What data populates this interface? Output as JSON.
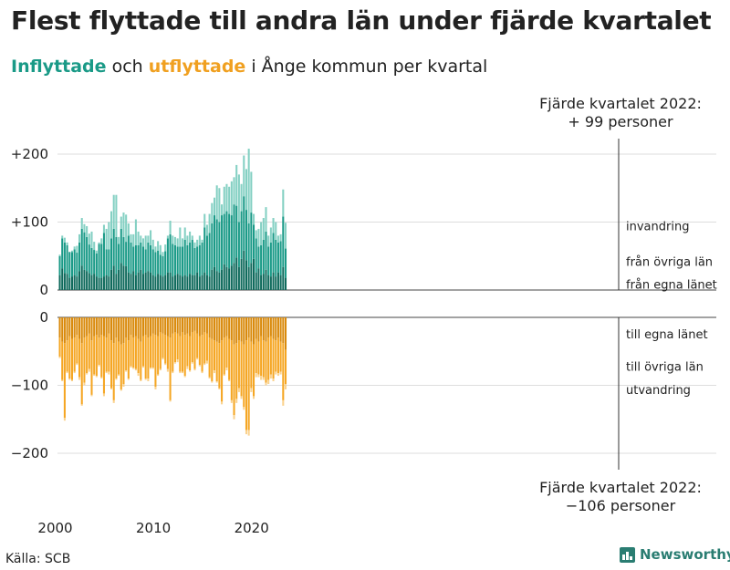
{
  "title": "Flest flyttade till andra län under fjärde kvartalet",
  "subtitle": {
    "part1": "Inflyttade",
    "part2": " och ",
    "part3": "utflyttade",
    "part4": " i Ånge kommun per kvartal"
  },
  "annotation_top": {
    "line1": "Fjärde kvartalet 2022:",
    "line2": "+ 99 personer"
  },
  "annotation_bottom": {
    "line1": "Fjärde kvartalet 2022:",
    "line2": "−106 personer"
  },
  "source": "Källa: SCB",
  "logo": "Newsworthy",
  "colors": {
    "in_egna": "#0f6a5c",
    "in_ovriga": "#1a9a87",
    "in_invandring": "#84d0c3",
    "out_egna": "#d98a0c",
    "out_ovriga": "#f5a623",
    "out_utvandring": "#fad28e",
    "grid": "#dddddd"
  },
  "chart_data": {
    "type": "bar",
    "stacked": true,
    "x_start": "2000 Q1",
    "x_end": "2022 Q4",
    "x_ticks": [
      {
        "year": 2000,
        "label": "2000"
      },
      {
        "year": 2010,
        "label": "2010"
      },
      {
        "year": 2020,
        "label": "2020"
      }
    ],
    "top_panel": {
      "ylim": [
        0,
        230
      ],
      "yticks": [
        {
          "value": 0,
          "label": "0"
        },
        {
          "value": 100,
          "label": "+100"
        },
        {
          "value": 200,
          "label": "+200"
        }
      ],
      "series": [
        {
          "name": "från egna länet",
          "label": "från egna länet",
          "color": "in_egna",
          "values": [
            22,
            32,
            25,
            24,
            18,
            20,
            22,
            20,
            28,
            36,
            30,
            28,
            25,
            22,
            24,
            20,
            18,
            18,
            20,
            22,
            20,
            30,
            36,
            24,
            30,
            40,
            36,
            35,
            26,
            24,
            28,
            22,
            26,
            30,
            24,
            26,
            28,
            26,
            22,
            20,
            24,
            22,
            20,
            22,
            26,
            26,
            20,
            22,
            24,
            22,
            20,
            22,
            20,
            24,
            22,
            22,
            26,
            20,
            22,
            26,
            22,
            20,
            30,
            34,
            28,
            26,
            30,
            38,
            34,
            32,
            36,
            40,
            48,
            34,
            46,
            58,
            44,
            34,
            40,
            46,
            26,
            32,
            22,
            24,
            30,
            22,
            20,
            26,
            20,
            26,
            22,
            34,
            18
          ]
        },
        {
          "name": "från övriga län",
          "label": "från övriga län",
          "color": "in_ovriga",
          "values": [
            28,
            44,
            45,
            42,
            38,
            36,
            38,
            35,
            42,
            54,
            55,
            50,
            42,
            40,
            35,
            34,
            50,
            50,
            64,
            38,
            40,
            46,
            54,
            54,
            38,
            50,
            42,
            36,
            54,
            46,
            36,
            44,
            40,
            40,
            40,
            34,
            42,
            40,
            38,
            36,
            34,
            30,
            30,
            35,
            50,
            56,
            48,
            44,
            40,
            42,
            44,
            52,
            46,
            46,
            52,
            40,
            38,
            46,
            48,
            66,
            58,
            64,
            68,
            76,
            76,
            74,
            80,
            74,
            82,
            80,
            74,
            86,
            76,
            66,
            70,
            80,
            74,
            64,
            74,
            50,
            50,
            32,
            44,
            50,
            56,
            42,
            50,
            58,
            54,
            44,
            50,
            74,
            43
          ]
        },
        {
          "name": "invandring",
          "label": "invandring",
          "color": "in_invandring",
          "values": [
            2,
            4,
            7,
            4,
            0,
            2,
            4,
            10,
            12,
            16,
            12,
            16,
            16,
            24,
            12,
            4,
            2,
            8,
            12,
            30,
            40,
            40,
            50,
            62,
            10,
            18,
            36,
            40,
            18,
            12,
            18,
            38,
            20,
            10,
            12,
            20,
            10,
            22,
            14,
            8,
            14,
            14,
            6,
            10,
            4,
            20,
            12,
            12,
            12,
            28,
            12,
            18,
            14,
            16,
            6,
            8,
            10,
            14,
            4,
            20,
            16,
            28,
            30,
            26,
            50,
            50,
            16,
            40,
            40,
            40,
            50,
            40,
            60,
            70,
            40,
            60,
            60,
            110,
            60,
            16,
            12,
            26,
            34,
            32,
            36,
            16,
            22,
            22,
            26,
            10,
            10,
            40,
            38
          ]
        }
      ]
    },
    "bottom_panel": {
      "ylim": [
        -230,
        0
      ],
      "yticks": [
        {
          "value": 0,
          "label": "0"
        },
        {
          "value": -100,
          "label": "−100"
        },
        {
          "value": -200,
          "label": "−200"
        }
      ],
      "series": [
        {
          "name": "till egna länet",
          "label": "till egna länet",
          "color": "out_egna",
          "values": [
            -30,
            -36,
            -38,
            -34,
            -28,
            -32,
            -30,
            -26,
            -32,
            -38,
            -30,
            -28,
            -24,
            -34,
            -28,
            -26,
            -30,
            -26,
            -28,
            -30,
            -24,
            -34,
            -38,
            -30,
            -36,
            -40,
            -38,
            -30,
            -34,
            -26,
            -30,
            -28,
            -32,
            -36,
            -28,
            -26,
            -30,
            -28,
            -24,
            -26,
            -28,
            -22,
            -24,
            -26,
            -28,
            -30,
            -24,
            -22,
            -24,
            -28,
            -22,
            -26,
            -24,
            -28,
            -22,
            -20,
            -24,
            -28,
            -26,
            -22,
            -24,
            -30,
            -32,
            -34,
            -36,
            -38,
            -34,
            -30,
            -28,
            -32,
            -34,
            -40,
            -38,
            -34,
            -36,
            -40,
            -34,
            -30,
            -36,
            -40,
            -32,
            -36,
            -28,
            -34,
            -36,
            -30,
            -28,
            -32,
            -34,
            -30,
            -36,
            -38,
            -48
          ]
        },
        {
          "name": "till övriga län",
          "label": "till övriga län",
          "color": "out_ovriga",
          "values": [
            -28,
            -56,
            -110,
            -46,
            -62,
            -60,
            -50,
            -42,
            -56,
            -90,
            -66,
            -54,
            -52,
            -80,
            -56,
            -60,
            -40,
            -62,
            -84,
            -50,
            -56,
            -70,
            -84,
            -60,
            -48,
            -66,
            -60,
            -48,
            -56,
            -46,
            -44,
            -48,
            -50,
            -56,
            -44,
            -64,
            -60,
            -46,
            -50,
            -76,
            -56,
            -54,
            -36,
            -42,
            -48,
            -92,
            -56,
            -44,
            -38,
            -52,
            -58,
            -60,
            -48,
            -50,
            -44,
            -56,
            -36,
            -42,
            -54,
            -46,
            -40,
            -58,
            -62,
            -44,
            -58,
            -66,
            -90,
            -54,
            -46,
            -60,
            -88,
            -104,
            -82,
            -70,
            -80,
            -92,
            -132,
            -136,
            -68,
            -76,
            -50,
            -48,
            -58,
            -54,
            -60,
            -62,
            -56,
            -58,
            -46,
            -52,
            -44,
            -84,
            -50
          ]
        },
        {
          "name": "utvandring",
          "label": "utvandring",
          "color": "out_utvandring",
          "values": [
            -2,
            -2,
            -4,
            -2,
            -2,
            -2,
            -2,
            -2,
            -4,
            -2,
            -4,
            -2,
            -4,
            -2,
            -2,
            -2,
            -2,
            -2,
            -4,
            -2,
            -4,
            -2,
            -4,
            -2,
            -2,
            -2,
            -4,
            -2,
            -2,
            -2,
            -2,
            -2,
            -4,
            -2,
            -2,
            -2,
            -4,
            -2,
            -2,
            -4,
            -2,
            -2,
            -2,
            -2,
            -4,
            -2,
            -2,
            -2,
            -4,
            -2,
            -2,
            -2,
            -4,
            -2,
            -2,
            -2,
            -2,
            -2,
            -2,
            -2,
            -4,
            -2,
            -2,
            -4,
            -2,
            -2,
            -4,
            -2,
            -4,
            -2,
            -4,
            -6,
            -6,
            -6,
            -4,
            -4,
            -6,
            -8,
            -6,
            -4,
            -6,
            -4,
            -6,
            -4,
            -4,
            -6,
            -6,
            -4,
            -4,
            -4,
            -4,
            -8,
            -8
          ]
        }
      ]
    },
    "highlight": {
      "quarter": "2022 Q4",
      "inflyttade_total": 99,
      "utflyttade_total": -106
    }
  }
}
